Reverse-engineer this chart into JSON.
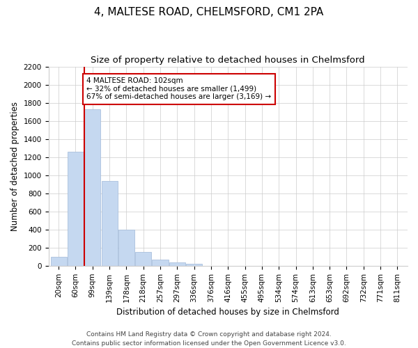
{
  "title1": "4, MALTESE ROAD, CHELMSFORD, CM1 2PA",
  "title2": "Size of property relative to detached houses in Chelmsford",
  "xlabel": "Distribution of detached houses by size in Chelmsford",
  "ylabel": "Number of detached properties",
  "categories": [
    "20sqm",
    "60sqm",
    "99sqm",
    "139sqm",
    "178sqm",
    "218sqm",
    "257sqm",
    "297sqm",
    "336sqm",
    "376sqm",
    "416sqm",
    "455sqm",
    "495sqm",
    "534sqm",
    "574sqm",
    "613sqm",
    "653sqm",
    "692sqm",
    "732sqm",
    "771sqm",
    "811sqm"
  ],
  "values": [
    100,
    1260,
    1730,
    940,
    400,
    150,
    65,
    40,
    25,
    0,
    0,
    0,
    0,
    0,
    0,
    0,
    0,
    0,
    0,
    0,
    0
  ],
  "bar_color": "#c5d8f0",
  "bar_edge_color": "#a0b8d8",
  "vline_color": "#cc0000",
  "vline_x": 1.5,
  "annotation_text": "4 MALTESE ROAD: 102sqm\n← 32% of detached houses are smaller (1,499)\n67% of semi-detached houses are larger (3,169) →",
  "annotation_box_color": "#ffffff",
  "annotation_box_edge": "#cc0000",
  "ylim": [
    0,
    2200
  ],
  "yticks": [
    0,
    200,
    400,
    600,
    800,
    1000,
    1200,
    1400,
    1600,
    1800,
    2000,
    2200
  ],
  "footer1": "Contains HM Land Registry data © Crown copyright and database right 2024.",
  "footer2": "Contains public sector information licensed under the Open Government Licence v3.0.",
  "background_color": "#ffffff",
  "grid_color": "#cccccc",
  "title1_fontsize": 11,
  "title2_fontsize": 9.5,
  "axis_label_fontsize": 8.5,
  "tick_fontsize": 7.5,
  "footer_fontsize": 6.5,
  "annot_fontsize": 7.5
}
